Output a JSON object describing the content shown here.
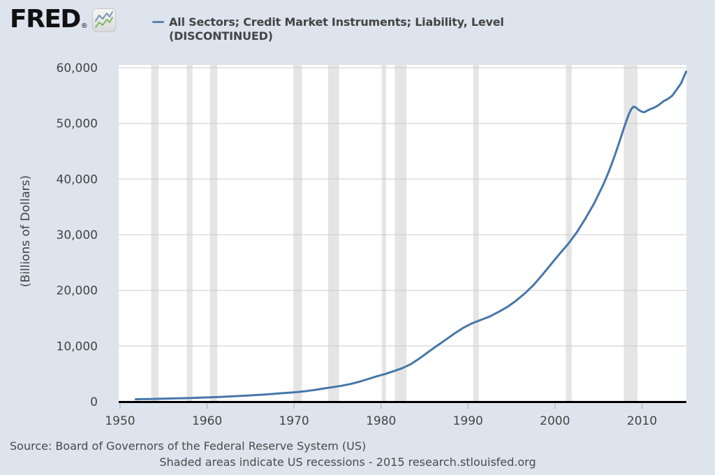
{
  "header": {
    "logo_text": "FRED",
    "registered_mark": "®",
    "legend": {
      "label_line1": "All Sectors; Credit Market Instruments; Liability, Level",
      "label_line2": "(DISCONTINUED)",
      "swatch_color": "#5b84b1"
    }
  },
  "footer": {
    "source_line": "Source: Board of Governors of the Federal Reserve System (US)",
    "note_line": "Shaded areas indicate US recessions - 2015 research.stlouisfed.org"
  },
  "colors": {
    "page_bg": "#dde4ed",
    "plot_bg": "#ffffff",
    "grid_line": "#cccccc",
    "recession_band": "#e5e5e5",
    "series_line": "#4777aa",
    "axis_line": "#000000",
    "tick_mark": "#a6adb5",
    "label_text": "#444444"
  },
  "chart_data": {
    "type": "line",
    "title": "All Sectors; Credit Market Instruments; Liability, Level (DISCONTINUED)",
    "xlabel": "",
    "ylabel": "(Billions of Dollars)",
    "xlim": [
      1949.84,
      2015.11
    ],
    "ylim": [
      0,
      60000
    ],
    "grid": true,
    "legend_position": "top",
    "x_ticks": [
      1950,
      1960,
      1970,
      1980,
      1990,
      2000,
      2010
    ],
    "x_tick_labels": [
      "1950",
      "1960",
      "1970",
      "1980",
      "1990",
      "2000",
      "2010"
    ],
    "y_ticks": [
      0,
      10000,
      20000,
      30000,
      40000,
      50000,
      60000
    ],
    "y_tick_labels": [
      "0",
      "10,000",
      "20,000",
      "30,000",
      "40,000",
      "50,000",
      "60,000"
    ],
    "recessions": [
      [
        1953.58,
        1954.42
      ],
      [
        1957.67,
        1958.33
      ],
      [
        1960.33,
        1961.17
      ],
      [
        1969.92,
        1970.92
      ],
      [
        1973.92,
        1975.17
      ],
      [
        1980.08,
        1980.58
      ],
      [
        1981.58,
        1982.92
      ],
      [
        1990.58,
        1991.25
      ],
      [
        2001.25,
        2001.92
      ],
      [
        2007.92,
        2009.5
      ]
    ],
    "series": [
      {
        "name": "All Sectors; Credit Market Instruments; Liability, Level (DISCONTINUED)",
        "units": "Billions of Dollars",
        "color": "#4777aa",
        "points": [
          [
            1951.8,
            430
          ],
          [
            1952.5,
            455
          ],
          [
            1953.5,
            480
          ],
          [
            1954.5,
            510
          ],
          [
            1955.5,
            555
          ],
          [
            1956.5,
            595
          ],
          [
            1957.5,
            630
          ],
          [
            1958.5,
            680
          ],
          [
            1959.5,
            740
          ],
          [
            1960.5,
            795
          ],
          [
            1961.5,
            855
          ],
          [
            1962.5,
            925
          ],
          [
            1963.5,
            1000
          ],
          [
            1964.5,
            1085
          ],
          [
            1965.5,
            1175
          ],
          [
            1966.5,
            1270
          ],
          [
            1967.5,
            1380
          ],
          [
            1968.5,
            1500
          ],
          [
            1969.5,
            1620
          ],
          [
            1970.5,
            1740
          ],
          [
            1971.5,
            1920
          ],
          [
            1972.5,
            2140
          ],
          [
            1973.5,
            2390
          ],
          [
            1974.5,
            2620
          ],
          [
            1975.5,
            2860
          ],
          [
            1976.5,
            3170
          ],
          [
            1977.5,
            3580
          ],
          [
            1978.5,
            4060
          ],
          [
            1979.5,
            4540
          ],
          [
            1980.5,
            4980
          ],
          [
            1981.5,
            5500
          ],
          [
            1982.5,
            6050
          ],
          [
            1983.5,
            6800
          ],
          [
            1984.5,
            7850
          ],
          [
            1985.5,
            9000
          ],
          [
            1986.5,
            10100
          ],
          [
            1987.5,
            11200
          ],
          [
            1988.5,
            12300
          ],
          [
            1989.5,
            13300
          ],
          [
            1990.5,
            14100
          ],
          [
            1991.5,
            14700
          ],
          [
            1992.5,
            15300
          ],
          [
            1993.5,
            16100
          ],
          [
            1994.5,
            17000
          ],
          [
            1995.5,
            18100
          ],
          [
            1996.5,
            19400
          ],
          [
            1997.5,
            20900
          ],
          [
            1998.5,
            22700
          ],
          [
            1999.5,
            24600
          ],
          [
            2000.5,
            26500
          ],
          [
            2001.5,
            28300
          ],
          [
            2002.5,
            30400
          ],
          [
            2003.5,
            32900
          ],
          [
            2004.5,
            35600
          ],
          [
            2005.5,
            38800
          ],
          [
            2006.0,
            40600
          ],
          [
            2006.5,
            42600
          ],
          [
            2007.0,
            44800
          ],
          [
            2007.5,
            47100
          ],
          [
            2008.0,
            49500
          ],
          [
            2008.5,
            51700
          ],
          [
            2008.75,
            52500
          ],
          [
            2009.0,
            53000
          ],
          [
            2009.25,
            52900
          ],
          [
            2009.5,
            52600
          ],
          [
            2009.75,
            52300
          ],
          [
            2010.0,
            52100
          ],
          [
            2010.25,
            52000
          ],
          [
            2010.5,
            52200
          ],
          [
            2010.75,
            52400
          ],
          [
            2011.0,
            52600
          ],
          [
            2011.5,
            52900
          ],
          [
            2012.0,
            53400
          ],
          [
            2012.5,
            54000
          ],
          [
            2013.0,
            54400
          ],
          [
            2013.5,
            55000
          ],
          [
            2014.0,
            56100
          ],
          [
            2014.5,
            57200
          ],
          [
            2014.75,
            58100
          ],
          [
            2015.0,
            59000
          ],
          [
            2015.08,
            59300
          ]
        ]
      }
    ]
  }
}
